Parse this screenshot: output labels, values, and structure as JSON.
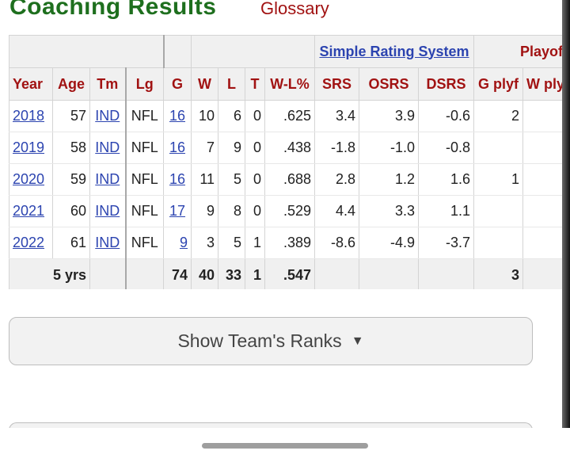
{
  "page_title": "Coaching Results",
  "glossary_link": "Glossary",
  "over_headers": {
    "srs": "Simple Rating System",
    "playoffs": "Playoffs"
  },
  "columns": [
    "Year",
    "Age",
    "Tm",
    "Lg",
    "G",
    "W",
    "L",
    "T",
    "W-L%",
    "SRS",
    "OSRS",
    "DSRS",
    "G plyf",
    "W plyf"
  ],
  "rows": [
    {
      "year": "2018",
      "age": "57",
      "tm": "IND",
      "lg": "NFL",
      "g": "16",
      "w": "10",
      "l": "6",
      "t": "0",
      "wl": ".625",
      "srs": "3.4",
      "osrs": "3.9",
      "dsrs": "-0.6",
      "gplyf": "2",
      "wplyf": ""
    },
    {
      "year": "2019",
      "age": "58",
      "tm": "IND",
      "lg": "NFL",
      "g": "16",
      "w": "7",
      "l": "9",
      "t": "0",
      "wl": ".438",
      "srs": "-1.8",
      "osrs": "-1.0",
      "dsrs": "-0.8",
      "gplyf": "",
      "wplyf": ""
    },
    {
      "year": "2020",
      "age": "59",
      "tm": "IND",
      "lg": "NFL",
      "g": "16",
      "w": "11",
      "l": "5",
      "t": "0",
      "wl": ".688",
      "srs": "2.8",
      "osrs": "1.2",
      "dsrs": "1.6",
      "gplyf": "1",
      "wplyf": ""
    },
    {
      "year": "2021",
      "age": "60",
      "tm": "IND",
      "lg": "NFL",
      "g": "17",
      "w": "9",
      "l": "8",
      "t": "0",
      "wl": ".529",
      "srs": "4.4",
      "osrs": "3.3",
      "dsrs": "1.1",
      "gplyf": "",
      "wplyf": ""
    },
    {
      "year": "2022",
      "age": "61",
      "tm": "IND",
      "lg": "NFL",
      "g": "9",
      "w": "3",
      "l": "5",
      "t": "1",
      "wl": ".389",
      "srs": "-8.6",
      "osrs": "-4.9",
      "dsrs": "-3.7",
      "gplyf": "",
      "wplyf": ""
    }
  ],
  "totals": {
    "label": "5 yrs",
    "g": "74",
    "w": "40",
    "l": "33",
    "t": "1",
    "wl": ".547",
    "gplyf": "3"
  },
  "show_ranks_label": "Show Team's Ranks",
  "show_ranks_icon": "triangle-down-icon",
  "colors": {
    "title": "#1e6f1e",
    "header_text": "#a11212",
    "link": "#2c44b0",
    "header_bg": "#f0f0f0"
  }
}
